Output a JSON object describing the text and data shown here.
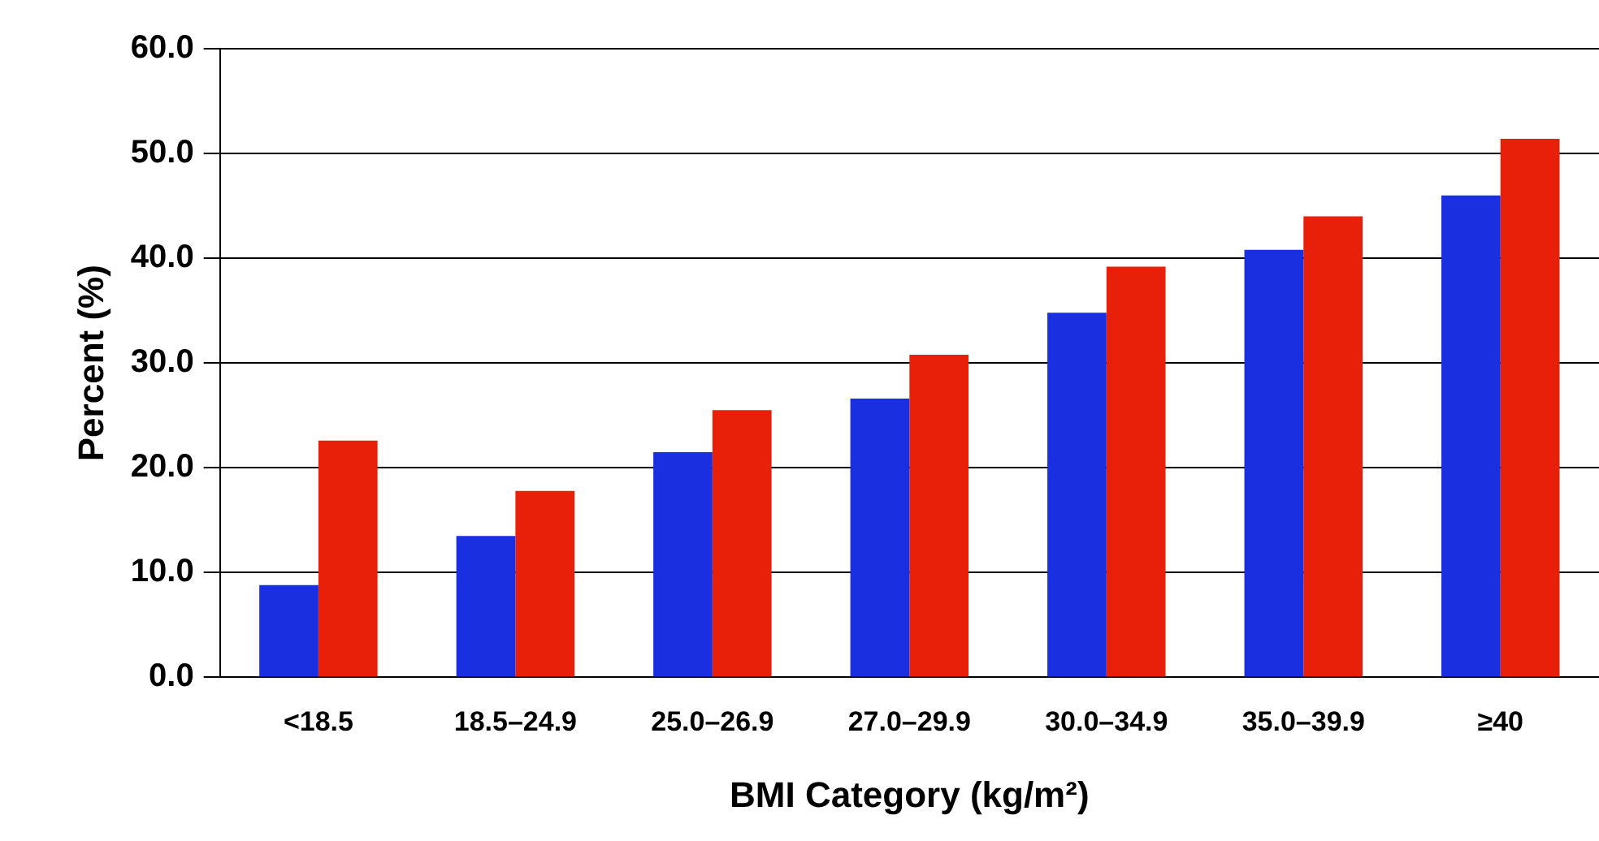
{
  "chart_data": {
    "type": "bar",
    "xlabel": "BMI Category (kg/m²)",
    "ylabel": "Percent (%)",
    "categories": [
      "<18.5",
      "18.5–24.9",
      "25.0–26.9",
      "27.0–29.9",
      "30.0–34.9",
      "35.0–39.9",
      "≥40"
    ],
    "series": [
      {
        "color": "#1a2fe0",
        "values": [
          8.8,
          13.5,
          21.5,
          26.6,
          34.8,
          40.8,
          46.0
        ]
      },
      {
        "color": "#e8200a",
        "values": [
          22.6,
          17.8,
          25.5,
          30.8,
          39.2,
          44.0,
          51.4
        ]
      }
    ],
    "ylim": [
      0,
      60
    ],
    "yticks": [
      {
        "value": 0,
        "label": "0.0"
      },
      {
        "value": 10,
        "label": "10.0"
      },
      {
        "value": 20,
        "label": "20.0"
      },
      {
        "value": 30,
        "label": "30.0"
      },
      {
        "value": 40,
        "label": "40.0"
      },
      {
        "value": 50,
        "label": "50.0"
      },
      {
        "value": 60,
        "label": "60.0"
      }
    ],
    "grid": "y",
    "legend": false
  }
}
